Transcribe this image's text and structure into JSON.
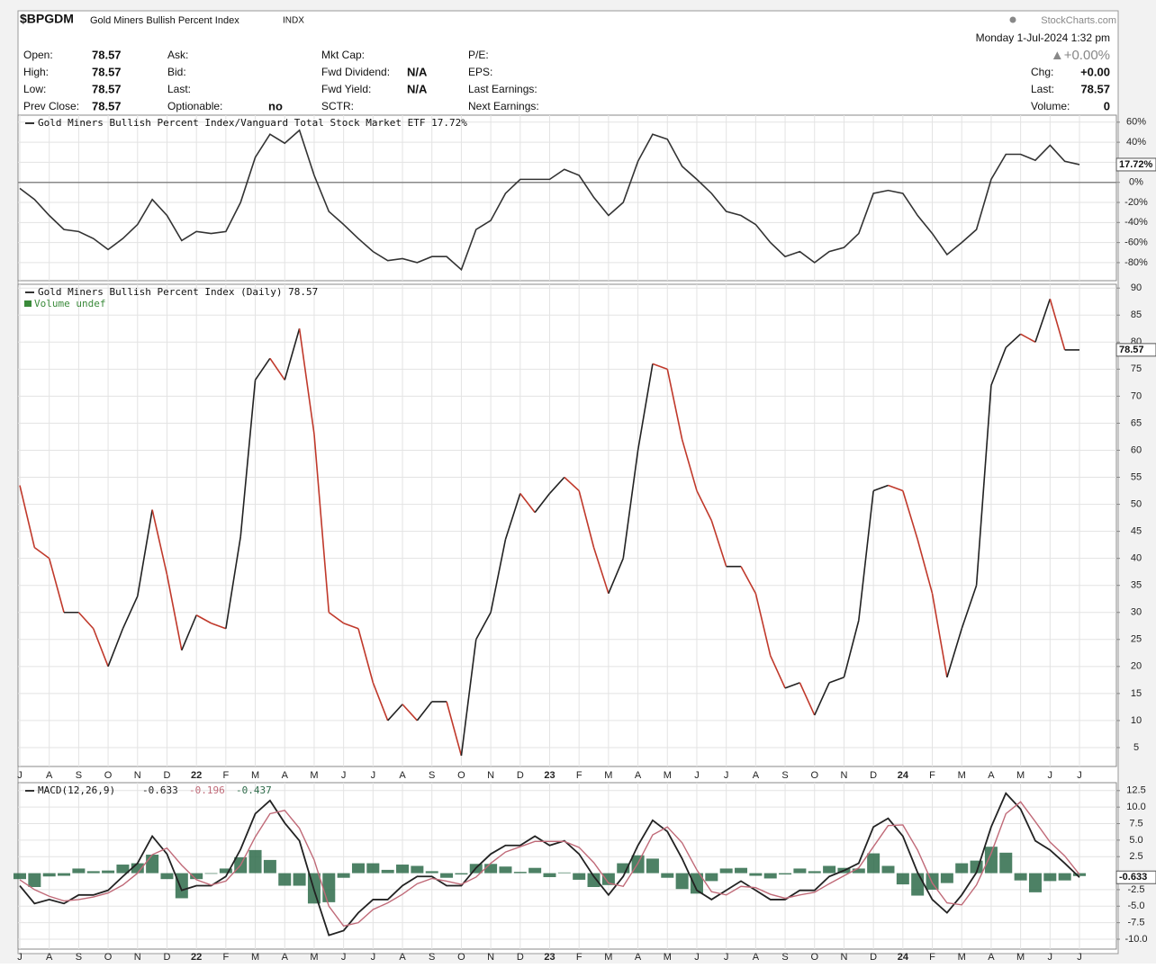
{
  "header": {
    "symbol": "$BPGDM",
    "name": "Gold Miners Bullish Percent Index",
    "exchange": "INDX",
    "source": "StockCharts.com",
    "timestamp": "Monday  1-Jul-2024  1:32 pm",
    "change_percent": "▲+0.00%"
  },
  "quote": {
    "columns": [
      [
        {
          "label": "Open:",
          "value": "78.57"
        },
        {
          "label": "High:",
          "value": "78.57"
        },
        {
          "label": "Low:",
          "value": "78.57"
        },
        {
          "label": "Prev Close:",
          "value": "78.57"
        }
      ],
      [
        {
          "label": "Ask:"
        },
        {
          "label": "Bid:"
        },
        {
          "label": "Last:"
        },
        {
          "label": "Optionable:",
          "value": "no"
        }
      ],
      [
        {
          "label": "Mkt Cap:"
        },
        {
          "label": "Fwd Dividend:",
          "value": "N/A"
        },
        {
          "label": "Fwd Yield:",
          "value": "N/A"
        },
        {
          "label": "SCTR:"
        }
      ],
      [
        {
          "label": "P/E:"
        },
        {
          "label": "EPS:"
        },
        {
          "label": "Last Earnings:"
        },
        {
          "label": "Next Earnings:"
        }
      ],
      [
        {
          "label": "Chg:",
          "value": "+0.00"
        },
        {
          "label": "Last:",
          "value": "78.57"
        },
        {
          "label": "Volume:",
          "value": "0"
        }
      ]
    ]
  },
  "chart_data": [
    {
      "type": "line",
      "title": "Gold Miners Bullish Percent Index/Vanguard Total Stock Market ETF 17.72%",
      "values": [
        -6,
        -17,
        -33,
        -47,
        -49,
        -56,
        -67,
        -56,
        -42,
        -17,
        -33,
        -58,
        -49,
        -51,
        -49,
        -20,
        25,
        48,
        39,
        52,
        7,
        -29,
        -42,
        -56,
        -69,
        -78,
        -76,
        -80,
        -74,
        -74,
        -87,
        -47,
        -38,
        -11,
        3,
        3,
        3,
        13,
        7,
        -15,
        -33,
        -20,
        21,
        48,
        43,
        16,
        3,
        -11,
        -29,
        -33,
        -42,
        -60,
        -74,
        -69,
        -80,
        -69,
        -65,
        -51,
        -11,
        -8,
        -11,
        -33,
        -51,
        -72,
        -60,
        -47,
        3,
        28,
        28,
        22,
        37,
        21,
        17.72
      ],
      "color": "#333333",
      "ylim": [
        -98,
        67
      ],
      "yticks": [
        {
          "value": 60,
          "label": "60%"
        },
        {
          "value": 40,
          "label": "40%"
        },
        {
          "value": 20,
          "label": "20%"
        },
        {
          "value": 0,
          "label": "0%"
        },
        {
          "value": -20,
          "label": "-20%"
        },
        {
          "value": -40,
          "label": "-40%"
        },
        {
          "value": -60,
          "label": "-60%"
        },
        {
          "value": -80,
          "label": "-80%"
        }
      ],
      "zero_line": true,
      "grid": true,
      "last_label": "17.72%"
    },
    {
      "type": "line",
      "title": "Gold Miners Bullish Percent Index (Daily) 78.57",
      "subtitle": "Volume undef",
      "categories": [
        "J",
        null,
        "A",
        null,
        "S",
        null,
        "O",
        null,
        "N",
        null,
        "D",
        null,
        "22",
        null,
        "F",
        null,
        "M",
        null,
        "A",
        null,
        "M",
        null,
        "J",
        null,
        "J",
        null,
        "A",
        null,
        "S",
        null,
        "O",
        null,
        "N",
        null,
        "D",
        null,
        "23",
        null,
        "F",
        null,
        "M",
        null,
        "A",
        null,
        "M",
        null,
        "J",
        null,
        "J",
        null,
        "A",
        null,
        "S",
        null,
        "O",
        null,
        "N",
        null,
        "D",
        null,
        "24",
        null,
        "F",
        null,
        "M",
        null,
        "A",
        null,
        "M",
        null,
        "J",
        null,
        "J"
      ],
      "values": [
        53.5,
        42,
        40,
        30,
        30,
        27,
        20,
        27,
        33,
        49,
        37,
        23,
        29.5,
        28,
        27,
        44,
        73,
        77,
        73,
        82.5,
        63,
        30,
        28,
        27,
        17,
        10,
        13,
        10,
        13.5,
        13.5,
        3.5,
        25,
        30,
        43.5,
        52,
        48.5,
        52,
        55,
        52.5,
        42,
        33.5,
        40,
        60,
        76,
        75,
        62,
        52.5,
        47,
        38.5,
        38.5,
        33.5,
        22,
        16,
        17,
        11,
        17,
        18,
        28.5,
        52.5,
        53.5,
        52.5,
        43.5,
        33.5,
        18,
        27,
        35,
        72,
        79,
        81.5,
        80,
        88,
        78.57,
        78.57
      ],
      "up_color": "#222222",
      "down_color": "#c0392b",
      "ylim": [
        1.5,
        90.7
      ],
      "yticks": [
        5,
        10,
        15,
        20,
        25,
        30,
        35,
        40,
        45,
        50,
        55,
        60,
        65,
        70,
        75,
        80,
        85,
        90
      ],
      "grid": true,
      "last_label": "78.57"
    },
    {
      "type": "macd",
      "title": "MACD(12,26,9)",
      "categories": [
        "J",
        null,
        "A",
        null,
        "S",
        null,
        "O",
        null,
        "N",
        null,
        "D",
        null,
        "22",
        null,
        "F",
        null,
        "M",
        null,
        "A",
        null,
        "M",
        null,
        "J",
        null,
        "J",
        null,
        "A",
        null,
        "S",
        null,
        "O",
        null,
        "N",
        null,
        "D",
        null,
        "23",
        null,
        "F",
        null,
        "M",
        null,
        "A",
        null,
        "M",
        null,
        "J",
        null,
        "J",
        null,
        "A",
        null,
        "S",
        null,
        "O",
        null,
        "N",
        null,
        "D",
        null,
        "24",
        null,
        "F",
        null,
        "M",
        null,
        "A",
        null,
        "M",
        null,
        "J",
        null,
        "J"
      ],
      "series": [
        {
          "name": "-0.633",
          "color": "#222222",
          "kind": "line",
          "values": [
            -1.9,
            -4.6,
            -4,
            -4.6,
            -3.3,
            -3.3,
            -2.6,
            -0.5,
            1.5,
            5.6,
            2.9,
            -2.6,
            -1.9,
            -1.9,
            -0.5,
            3.6,
            9,
            11,
            7.6,
            4.9,
            -2.6,
            -9.4,
            -8.7,
            -6,
            -4,
            -4,
            -1.9,
            -0.5,
            -0.5,
            -1.9,
            -1.9,
            0.8,
            2.9,
            4.2,
            4.2,
            5.6,
            4.2,
            4.9,
            2.9,
            -0.5,
            -3.3,
            -0.5,
            4.2,
            8,
            6.3,
            2.2,
            -2.6,
            -4,
            -2.6,
            -1.2,
            -2.6,
            -4,
            -4,
            -2.6,
            -2.6,
            -0.5,
            0.4,
            1.5,
            7,
            8.3,
            5.6,
            0.1,
            -4,
            -6,
            -3.3,
            0.1,
            7,
            12.1,
            9.7,
            4.9,
            3.5,
            1.5,
            -0.633
          ]
        },
        {
          "name": "-0.196",
          "color": "#c06a78",
          "kind": "line",
          "values": [
            -1.0,
            -2.5,
            -3.5,
            -4.2,
            -4.0,
            -3.6,
            -3.0,
            -1.8,
            0.0,
            2.8,
            3.8,
            1.2,
            -1.0,
            -1.8,
            -1.2,
            1.2,
            5.5,
            9.0,
            9.5,
            6.8,
            2.0,
            -5.0,
            -8.0,
            -7.5,
            -5.5,
            -4.5,
            -3.2,
            -1.6,
            -0.8,
            -1.2,
            -1.7,
            -0.6,
            1.5,
            3.2,
            4.0,
            4.8,
            4.8,
            4.8,
            3.9,
            1.6,
            -1.5,
            -2.0,
            1.5,
            5.8,
            7.0,
            4.6,
            0.5,
            -2.8,
            -3.3,
            -2.0,
            -2.2,
            -3.2,
            -3.8,
            -3.3,
            -2.9,
            -1.6,
            -0.4,
            0.8,
            4.0,
            7.2,
            7.3,
            3.5,
            -1.5,
            -4.5,
            -4.8,
            -1.8,
            3.0,
            9.0,
            10.8,
            7.8,
            4.7,
            2.6,
            -0.196
          ]
        },
        {
          "name": "-0.437",
          "color": "#2e6b4a",
          "kind": "bar",
          "values": [
            -0.9,
            -2.1,
            -0.5,
            -0.4,
            0.7,
            0.3,
            0.4,
            1.3,
            1.5,
            2.8,
            -0.9,
            -3.8,
            -0.9,
            -0.1,
            0.7,
            2.4,
            3.5,
            2,
            -1.9,
            -1.9,
            -4.6,
            -4.4,
            -0.7,
            1.5,
            1.5,
            0.5,
            1.3,
            1.1,
            0.3,
            -0.7,
            -0.2,
            1.4,
            1.4,
            1,
            0.2,
            0.8,
            -0.6,
            0.1,
            -1,
            -2.1,
            -1.8,
            1.5,
            2.7,
            2.2,
            -0.7,
            -2.4,
            -3.1,
            -1.2,
            0.7,
            0.8,
            -0.4,
            -0.8,
            -0.2,
            0.7,
            0.3,
            1.1,
            0.8,
            0.7,
            3,
            1.1,
            -1.7,
            -3.4,
            -2.5,
            -1.5,
            1.5,
            1.9,
            4,
            3.1,
            -1.1,
            -2.9,
            -1.2,
            -1.1,
            -0.437
          ]
        }
      ],
      "ylim": [
        -11.5,
        13.7
      ],
      "yticks": [
        12.5,
        {
          "value": 10,
          "label": "10.0"
        },
        7.5,
        {
          "value": 5,
          "label": "5.0"
        },
        2.5,
        -2.5,
        {
          "value": -5,
          "label": "-5.0"
        },
        -7.5,
        {
          "value": -10,
          "label": "-10.0"
        }
      ],
      "grid": true,
      "last_label": "-0.633"
    }
  ]
}
